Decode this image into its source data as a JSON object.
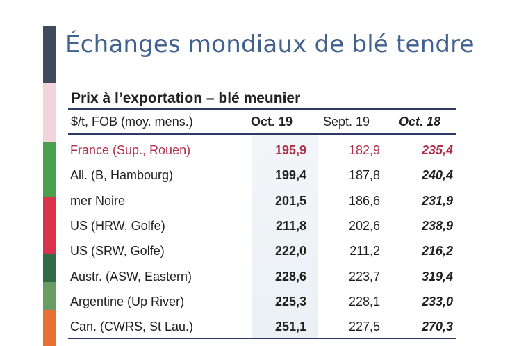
{
  "title": "Échanges mondiaux de blé tendre",
  "subtitle": "Prix à l’exportation – blé meunier",
  "colors": {
    "title": "#41618e",
    "highlight": "#b0304a",
    "rule": "#2e3a66",
    "bar_segments": [
      "#3f4a5e",
      "#f3d4da",
      "#4aa04c",
      "#d9334b",
      "#2f6b45",
      "#6a9b63",
      "#e87033"
    ]
  },
  "table": {
    "headers": [
      "$/t, FOB (moy. mens.)",
      "Oct. 19",
      "Sept. 19",
      "Oct. 18"
    ],
    "rows": [
      {
        "label": "France (Sup., Rouen)",
        "oct19": "195,9",
        "sept19": "182,9",
        "oct18": "235,4",
        "highlight": true
      },
      {
        "label": "All. (B, Hambourg)",
        "oct19": "199,4",
        "sept19": "187,8",
        "oct18": "240,4"
      },
      {
        "label": "mer Noire",
        "oct19": "201,5",
        "sept19": "186,6",
        "oct18": "231,9"
      },
      {
        "label": "US (HRW, Golfe)",
        "oct19": "211,8",
        "sept19": "202,6",
        "oct18": "238,9"
      },
      {
        "label": "US (SRW, Golfe)",
        "oct19": "222,0",
        "sept19": "211,2",
        "oct18": "216,2"
      },
      {
        "label": "Austr. (ASW, Eastern)",
        "oct19": "228,6",
        "sept19": "223,7",
        "oct18": "319,4"
      },
      {
        "label": "Argentine (Up River)",
        "oct19": "225,3",
        "sept19": "228,1",
        "oct18": "233,0"
      },
      {
        "label": "Can. (CWRS, St Lau.)",
        "oct19": "251,1",
        "sept19": "227,5",
        "oct18": "270,3"
      }
    ]
  }
}
